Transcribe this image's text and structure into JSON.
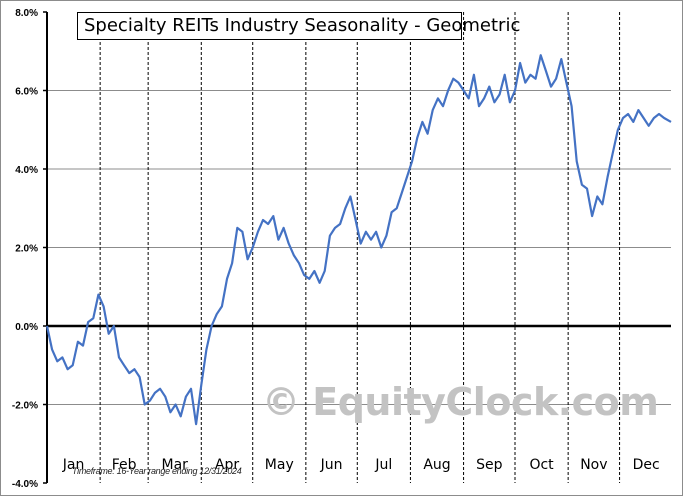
{
  "chart_data": {
    "type": "line",
    "title": "Specialty REITs Industry Seasonality - Geometric",
    "xlabel": "",
    "ylabel": "",
    "ylim": [
      -4.0,
      8.0
    ],
    "y_ticks": [
      "8.0%",
      "6.0%",
      "4.0%",
      "2.0%",
      "0.0%",
      "-2.0%",
      "-4.0%"
    ],
    "y_tick_values": [
      8,
      6,
      4,
      2,
      0,
      -2,
      -4
    ],
    "categories": [
      "Jan",
      "Feb",
      "Mar",
      "Apr",
      "May",
      "Jun",
      "Jul",
      "Aug",
      "Sep",
      "Oct",
      "Nov",
      "Dec"
    ],
    "grid": {
      "horizontal": true,
      "vertical_month_separators": true
    },
    "legend": "none",
    "annotations": [
      "Timeframe: 16-Year range ending 12/31/2024",
      "© EquityClock.com"
    ],
    "series": [
      {
        "name": "Specialty REITs Industry Seasonality - Geometric",
        "color": "#4472c4",
        "x_day_of_year": [
          1,
          4,
          7,
          10,
          13,
          16,
          19,
          22,
          25,
          28,
          31,
          34,
          37,
          40,
          43,
          46,
          49,
          52,
          55,
          58,
          61,
          64,
          67,
          70,
          73,
          76,
          79,
          82,
          85,
          88,
          91,
          94,
          97,
          100,
          103,
          106,
          109,
          112,
          115,
          118,
          121,
          124,
          127,
          130,
          133,
          136,
          139,
          142,
          145,
          148,
          151,
          154,
          157,
          160,
          163,
          166,
          169,
          172,
          175,
          178,
          181,
          184,
          187,
          190,
          193,
          196,
          199,
          202,
          205,
          208,
          211,
          214,
          217,
          220,
          223,
          226,
          229,
          232,
          235,
          238,
          241,
          244,
          247,
          250,
          253,
          256,
          259,
          262,
          265,
          268,
          271,
          274,
          277,
          280,
          283,
          286,
          289,
          292,
          295,
          298,
          301,
          304,
          307,
          310,
          313,
          316,
          319,
          322,
          325,
          328,
          331,
          334,
          337,
          340,
          343,
          346,
          349,
          352,
          355,
          358,
          361,
          365
        ],
        "values": [
          0.0,
          -0.6,
          -0.9,
          -0.8,
          -1.1,
          -1.0,
          -0.4,
          -0.5,
          0.1,
          0.2,
          0.8,
          0.5,
          -0.2,
          0.0,
          -0.8,
          -1.0,
          -1.2,
          -1.1,
          -1.3,
          -2.0,
          -1.9,
          -1.7,
          -1.6,
          -1.8,
          -2.2,
          -2.0,
          -2.3,
          -1.8,
          -1.6,
          -2.5,
          -1.5,
          -0.6,
          0.0,
          0.3,
          0.5,
          1.2,
          1.6,
          2.5,
          2.4,
          1.7,
          2.0,
          2.4,
          2.7,
          2.6,
          2.8,
          2.2,
          2.5,
          2.1,
          1.8,
          1.6,
          1.3,
          1.2,
          1.4,
          1.1,
          1.4,
          2.3,
          2.5,
          2.6,
          3.0,
          3.3,
          2.7,
          2.1,
          2.4,
          2.2,
          2.4,
          2.0,
          2.3,
          2.9,
          3.0,
          3.4,
          3.8,
          4.2,
          4.8,
          5.2,
          4.9,
          5.5,
          5.8,
          5.6,
          6.0,
          6.3,
          6.2,
          6.0,
          5.8,
          6.4,
          5.6,
          5.8,
          6.1,
          5.7,
          5.9,
          6.4,
          5.7,
          6.0,
          6.7,
          6.2,
          6.4,
          6.3,
          6.9,
          6.5,
          6.1,
          6.3,
          6.8,
          6.2,
          5.6,
          4.2,
          3.6,
          3.5,
          2.8,
          3.3,
          3.1,
          3.8,
          4.4,
          5.0,
          5.3,
          5.4,
          5.2,
          5.5,
          5.3,
          5.1,
          5.3,
          5.4,
          5.3,
          5.2
        ]
      }
    ]
  },
  "chart": {
    "title": "Specialty REITs Industry Seasonality - Geometric",
    "timeframe": "Timeframe: 16-Year range ending 12/31/2024",
    "watermark": "© EquityClock.com",
    "line_color": "#4472c4"
  }
}
